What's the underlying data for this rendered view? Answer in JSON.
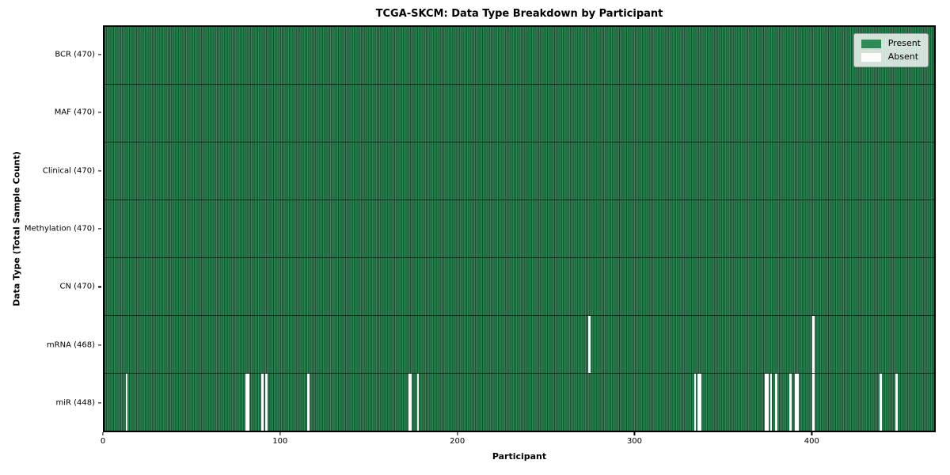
{
  "chart_data": {
    "type": "heatmap",
    "title": "TCGA-SKCM: Data Type Breakdown by Participant",
    "xlabel": "Participant",
    "ylabel": "Data Type (Total Sample Count)",
    "n_participants": 470,
    "x_axis": {
      "range": [
        0,
        470
      ],
      "ticks": [
        0,
        100,
        200,
        300,
        400
      ]
    },
    "colors": {
      "present": "#2e8b57",
      "absent": "#ffffff",
      "cell_edge": "rgba(0,0,0,0.5)",
      "row_divider": "rgba(0,0,0,0.6)",
      "spine": "#000000"
    },
    "legend": {
      "position": "upper right",
      "entries": [
        {
          "label": "Present",
          "color": "#2e8b57"
        },
        {
          "label": "Absent",
          "color": "#ffffff"
        }
      ]
    },
    "rows": [
      {
        "label": "BCR (470)",
        "data_type": "BCR",
        "present_count": 470,
        "absent_indices": []
      },
      {
        "label": "MAF (470)",
        "data_type": "MAF",
        "present_count": 470,
        "absent_indices": []
      },
      {
        "label": "Clinical (470)",
        "data_type": "Clinical",
        "present_count": 470,
        "absent_indices": []
      },
      {
        "label": "Methylation (470)",
        "data_type": "Methylation",
        "present_count": 470,
        "absent_indices": []
      },
      {
        "label": "CN (470)",
        "data_type": "CN",
        "present_count": 470,
        "absent_indices": []
      },
      {
        "label": "mRNA (468)",
        "data_type": "mRNA",
        "present_count": 468,
        "absent_indices": [
          274,
          401
        ]
      },
      {
        "label": "miR (448)",
        "data_type": "miR",
        "present_count": 448,
        "absent_indices": [
          12,
          80,
          81,
          89,
          91,
          115,
          172,
          173,
          177,
          334,
          336,
          337,
          374,
          375,
          377,
          380,
          388,
          391,
          392,
          401,
          439,
          448
        ]
      }
    ]
  }
}
